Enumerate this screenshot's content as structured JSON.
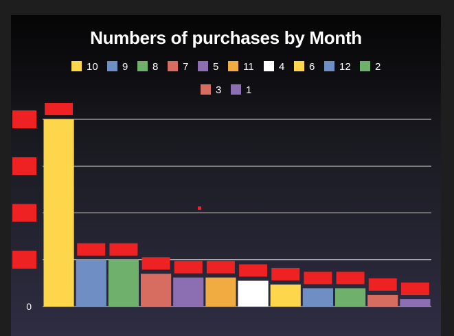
{
  "chart_data": {
    "type": "bar",
    "title": "Numbers of purchases by Month",
    "xlabel": "",
    "ylabel": "",
    "categories": [
      "10",
      "9",
      "8",
      "7",
      "5",
      "11",
      "4",
      "6",
      "12",
      "2",
      "3",
      "1"
    ],
    "values": [
      40,
      10,
      10,
      7,
      6.2,
      6.2,
      5.5,
      4.7,
      3.9,
      3.9,
      2.5,
      1.6
    ],
    "colors": [
      "#fdd64b",
      "#6f8fc4",
      "#6fb16c",
      "#d76d60",
      "#8c6fb3",
      "#f0ab41",
      "#ffffff",
      "#fdd64b",
      "#6f8fc4",
      "#6fb16c",
      "#d76d60",
      "#8c6fb3"
    ],
    "ylim": [
      0,
      40
    ],
    "yticks": [
      0,
      10,
      20,
      30,
      40
    ],
    "ytick_labels": [
      "0",
      "",
      "",
      "",
      ""
    ],
    "legend": "top",
    "grid": true,
    "redaction_color": "#ee2222"
  }
}
